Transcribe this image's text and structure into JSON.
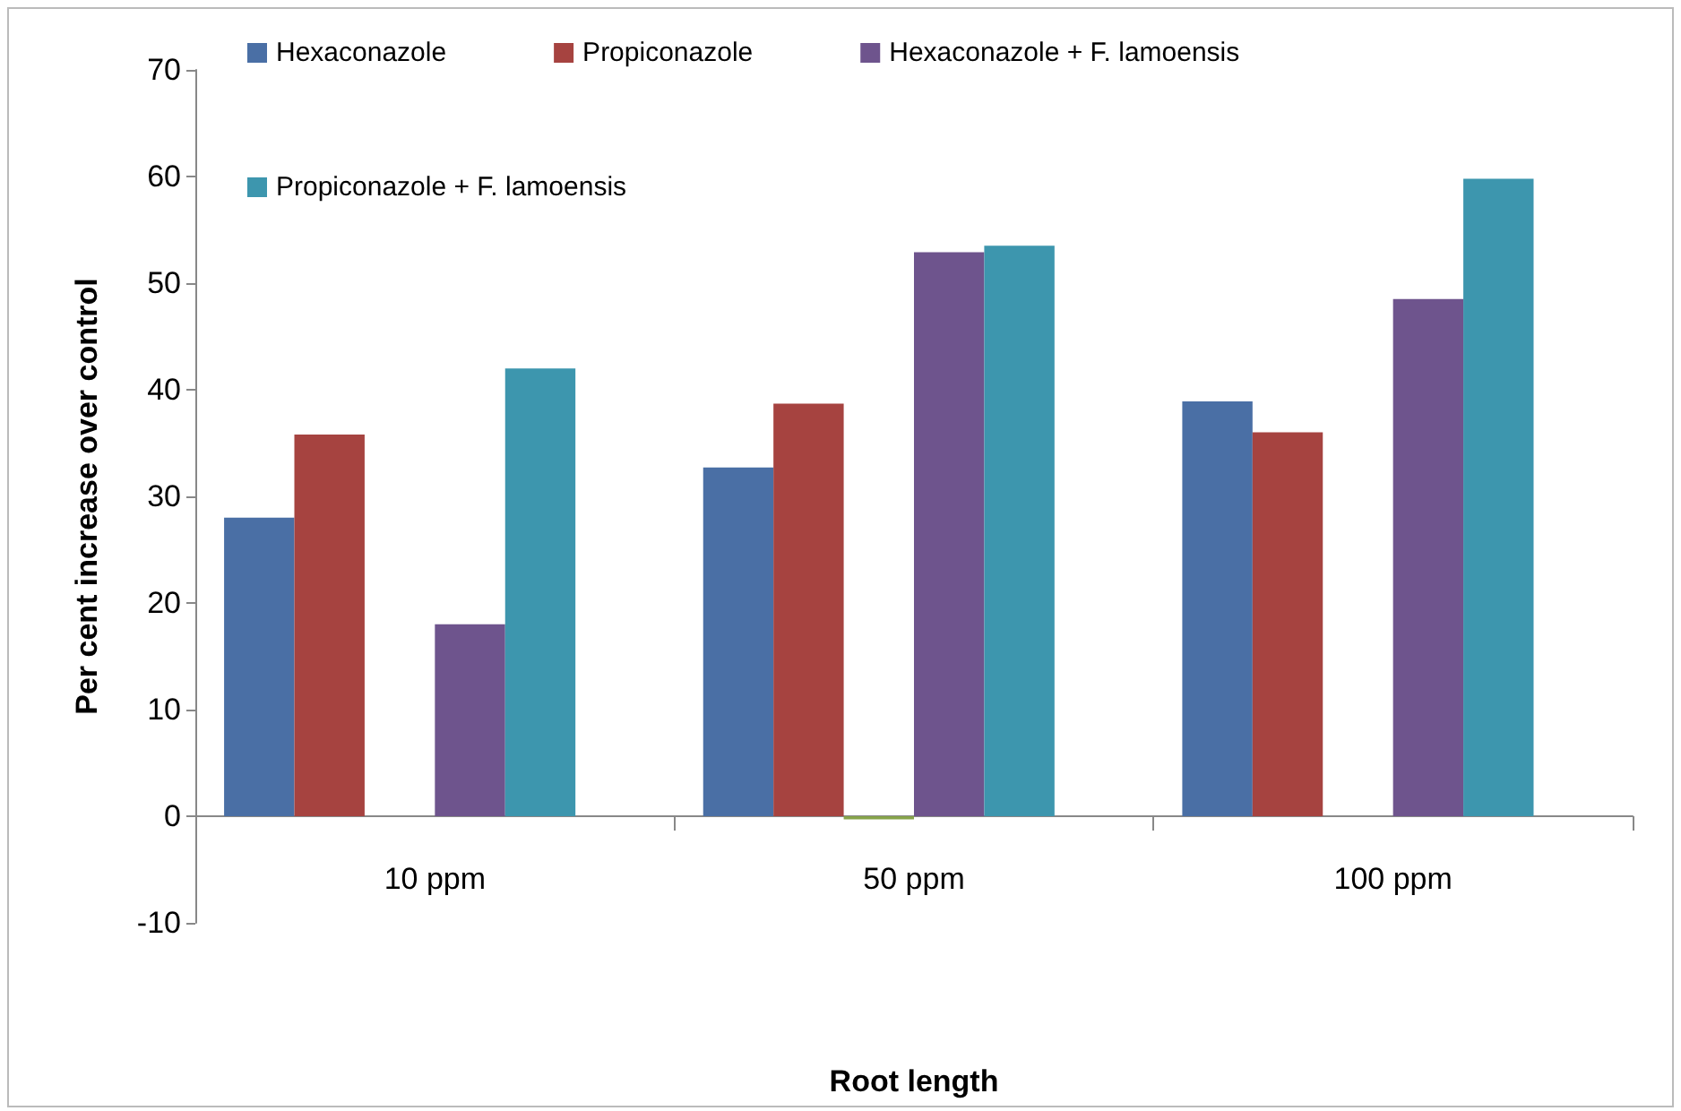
{
  "chart_data": {
    "type": "bar",
    "xlabel": "Root length",
    "ylabel": "Per cent increase over control",
    "categories": [
      "10 ppm",
      "50 ppm",
      "100 ppm"
    ],
    "series": [
      {
        "name": "Hexaconazole",
        "color": "#4a6fa5",
        "values": [
          28,
          32.7,
          38.9
        ]
      },
      {
        "name": "Propiconazole",
        "color": "#a64340",
        "values": [
          35.8,
          38.7,
          36
        ]
      },
      {
        "color": "#86a44a",
        "values": [
          0,
          -0.3,
          0
        ]
      },
      {
        "name": "Hexaconazole + F. lamoensis",
        "color": "#6e548d",
        "values": [
          18,
          52.9,
          48.5
        ]
      },
      {
        "name": "Propiconazole + F. lamoensis",
        "color": "#3d96ae",
        "values": [
          42,
          53.5,
          59.8
        ]
      },
      {
        "color": "#da8137",
        "values": [
          0,
          0,
          0
        ]
      }
    ],
    "ylim": [
      -10,
      70
    ],
    "yticks": [
      -10,
      0,
      10,
      20,
      30,
      40,
      50,
      60,
      70
    ],
    "legend": "top"
  }
}
